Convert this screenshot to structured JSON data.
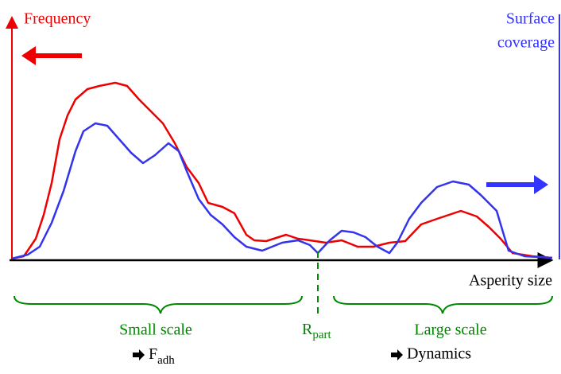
{
  "left_axis": {
    "label": "Frequency"
  },
  "right_axis": {
    "label_lines": [
      "Surface",
      "coverage"
    ]
  },
  "x_axis": {
    "label": "Asperity size"
  },
  "divider": {
    "symbol": "R",
    "subscript": "part"
  },
  "regions": [
    {
      "label": "Small scale",
      "note": {
        "symbol": "F",
        "subscript": "adh"
      }
    },
    {
      "label": "Large scale",
      "note": "Dynamics"
    }
  ]
}
